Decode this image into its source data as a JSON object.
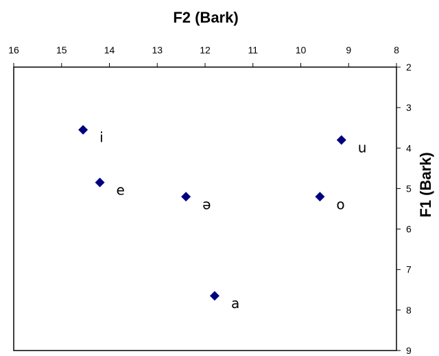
{
  "chart_data": {
    "type": "scatter",
    "title": "",
    "xlabel": "F2 (Bark)",
    "ylabel": "F1 (Bark)",
    "xlim": [
      16,
      8
    ],
    "ylim": [
      2,
      9
    ],
    "x_reversed": true,
    "y_reversed": true,
    "x_axis_position": "top",
    "y_axis_position": "right",
    "grid": false,
    "legend": "none",
    "marker_color": "#00007f",
    "x_ticks": [
      "16",
      "15",
      "14",
      "13",
      "12",
      "11",
      "10",
      "9",
      "8"
    ],
    "y_ticks": [
      "2",
      "3",
      "4",
      "5",
      "6",
      "7",
      "8",
      "9"
    ],
    "points": [
      {
        "label": "i",
        "x": 14.55,
        "y": 3.55
      },
      {
        "label": "e",
        "x": 14.2,
        "y": 4.85
      },
      {
        "label": "ə",
        "x": 12.4,
        "y": 5.2
      },
      {
        "label": "a",
        "x": 11.8,
        "y": 7.65
      },
      {
        "label": "o",
        "x": 9.6,
        "y": 5.2
      },
      {
        "label": "u",
        "x": 9.15,
        "y": 3.8
      }
    ]
  }
}
